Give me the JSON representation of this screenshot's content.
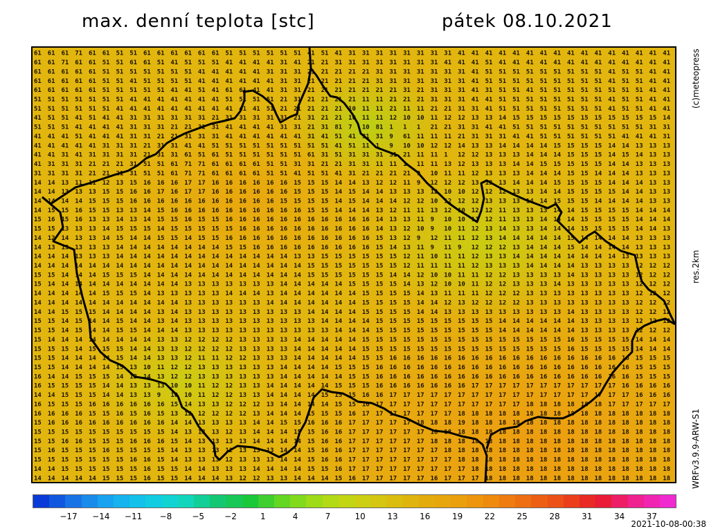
{
  "title_left": "max. denní teplota [stc]",
  "title_right": "pátek 08.10.2021",
  "side_copyright": "(c)meteopress",
  "side_resolution": "res.2km",
  "side_model": "WRFv3.9.9-ARW-S1",
  "timestamp": "2021-10-08-00:38",
  "colorbar": {
    "tick_labels": [
      "−17",
      "−14",
      "−11",
      "−8",
      "−5",
      "−2",
      "1",
      "4",
      "7",
      "10",
      "13",
      "16",
      "19",
      "22",
      "25",
      "28",
      "31",
      "34",
      "37"
    ],
    "stops": [
      "#0a3ad8",
      "#1a78e8",
      "#18aaf0",
      "#12c8e8",
      "#10d8c8",
      "#14c878",
      "#1ac83a",
      "#6ad820",
      "#a8dc18",
      "#cad412",
      "#d8c010",
      "#e4ac0c",
      "#eaa00c",
      "#ee880e",
      "#ee6a12",
      "#ec4a18",
      "#e81a28",
      "#f0208c",
      "#f02ad0"
    ]
  },
  "map": {
    "rows": [
      "6161617161615151616161616161515151515151415141313131313131313141414141414141414141414141414141",
      "6161716161515161615141515151414141413141212131313131313131314141415141414141414141414141414141",
      "6161616161515151515151514141414141313131212121212131313131313131415151515151515151514151514141",
      "6161616161515141515151514141414141413131212121212131313131313131415151515151515151514151514141",
      "6161616161515151515141415141616141413131212121212121213121313131413151514151515151515151514141",
      "5151515151515141414141414141515151512131212121211111212121313131414151515151515151514151514141",
      "5151515151514141414141414141414141512121212121101111211111212131314151515151515151514151514141",
      "4151514151414131313131313121313131313121312121101111121010111212131314151515151515151515151514",
      "5151514141414131313121213131414141413131213181071081010101212131314141515151515151515151513131",
      "4141415141414131312121313131414141414141314151413131096111111121313131414151515151515141414131",
      "4141414141313131213131414151515151515151515141511101091010121214131314141414151515151414131313",
      "4141314131313131213131615161515151515151613151313131312111110112121313131414141515151415141313",
      "4131313121212131515161717161616161515131312121313111110111111312131313141415151515151414131313",
      "3131313121212131515161717161616161515141515141312121212109101111121313131414141515141414131313",
      "1414131111121315161616171716161616161615151514141312121109121212131313141414151515151414141313",
      "1414131313151516161716171716161616161615151514151414131313121010121212131314141515151514141313",
      "1414141415151516161616161616161616161515151514151414141212101212121313131414151515141414141313",
      "1415151615151313141516161616161616161616151514141413121111131210121211131313141415151515141414",
      "1516151613131413141515161515161616161616161616161614131311091010111211131314141415151515141414",
      "1515131313141515151415151515151616161616161616161614131210091011121314131314141415151515141413",
      "1412141313141514141515141515161616161616161616161615131209121111121314141414141514141414131313",
      "1413131313131414141414141414151516161616161616161615141311091109121212131414141514141414131313",
      "1414141313131414141414141414141414141413131515151515151211101111121313141414141414141413131313",
      "1414141414141414141414141414141414141414151515151515151211111111121313131414141413131313121212",
      "1515141414151515141414141414141414141414151515151515141412101011111212131313131413131313121212",
      "1514141414141414141414131313131313131414141414151515151413121010111212131313141313131313121212",
      "1414141414151515141313131313141414131414141414141515151514131111111212121313131313131313121212",
      "1414141414141414141414131313131313141414141414141515151514141213121212121313131313131313121212",
      "1414151515141414141314131313131313131313141414141515151514141313131313131313131413131313121212",
      "1515141514141514141314131313131313131313131414141415151515151515151514141414141413131313121212",
      "1515141514141515141414131313131313131313131314141415151515151515151514141414141413131313121212",
      "1514141414141414141313121212121313131314141414141515151515151515151515151515151615151515141414",
      "1515151415151514141313121212121313131314141414141515151515151515151515151515151615151515141414",
      "1515141414141514141313121111121213131314141414141515161616161616161616161616161616161616151515",
      "1515141414141513101112121313131313131414141415151516161616161616161616161616161616161616151515",
      "1614141515151413141312121313131313131414141414151516161616161616161616161616161616161616151515",
      "1615151515141413131310101112121313141414141415151516161616161616171717171717171717171716161616",
      "1414151515141413130910101112121313141414141515151616171717171717171717171717171717171717161616",
      "1615151516161616161615141313121212131414141415151617171717171717171717171818181818181717171717",
      "1616161615151615161513121212121213141414151515161717171717171718181818181818181818181818181818",
      "1516161616161616161614141313131314141515161616171717171718181819181818181818181818181818181818",
      "1515151515151515151514131313121314141415151616171717171717181818181818181818181818181818181818",
      "1515161615151516161615141313131314141414151616171717171717181818181818181818181818181818181818",
      "1516151515161515151514131313121313131414151616171717171717171818181818181818181818181818181818",
      "1515151515151516161514131313121313131414151616171717171717171718181818181818181818181818181818",
      "1414151515151515161515141413131314141414151516171717171717171717181818181818181818181818181818",
      "1414141414151515161515141414131212131314141415161717171717161717171818181818181818181818181818"
    ]
  }
}
